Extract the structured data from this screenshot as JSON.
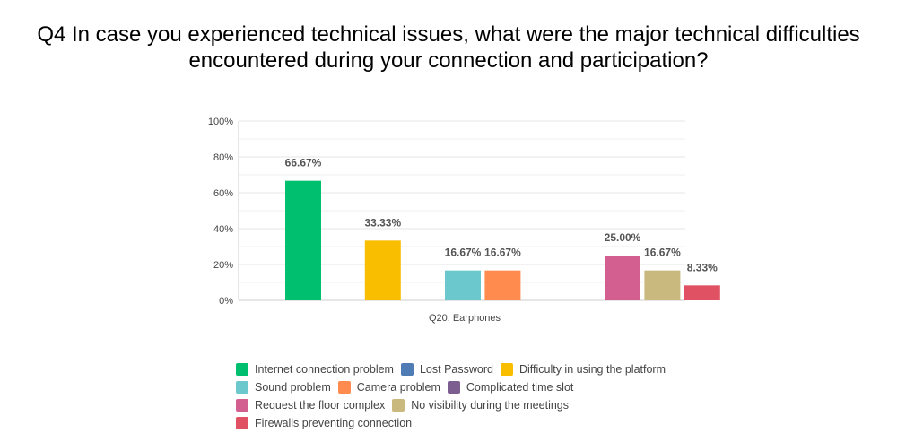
{
  "title_lines": [
    "Q4 In case you experienced technical issues, what were the major technical difficulties",
    "encountered during your connection and participation?"
  ],
  "chart_data": {
    "type": "bar",
    "categories": [
      "Q20: Earphones"
    ],
    "ylim": [
      0,
      100
    ],
    "y_ticks": [
      "0%",
      "20%",
      "40%",
      "60%",
      "80%",
      "100%"
    ],
    "y_tick_values": [
      0,
      20,
      40,
      60,
      80,
      100
    ],
    "grid": true,
    "legend_position": "bottom",
    "series": [
      {
        "name": "Internet connection problem",
        "color": "#00bf6f",
        "values": [
          66.67
        ],
        "label": "66.67%"
      },
      {
        "name": "Lost Password",
        "color": "#507cb6",
        "values": [
          0
        ],
        "label": ""
      },
      {
        "name": "Difficulty in using the platform",
        "color": "#f9be00",
        "values": [
          33.33
        ],
        "label": "33.33%"
      },
      {
        "name": "Sound problem",
        "color": "#6bc8cd",
        "values": [
          16.67
        ],
        "label": "16.67%"
      },
      {
        "name": "Camera problem",
        "color": "#ff8b4f",
        "values": [
          16.67
        ],
        "label": "16.67%"
      },
      {
        "name": "Complicated time slot",
        "color": "#7d5e90",
        "values": [
          0
        ],
        "label": ""
      },
      {
        "name": "Request the floor complex",
        "color": "#d25f90",
        "values": [
          25.0
        ],
        "label": "25.00%"
      },
      {
        "name": "No visibility during the meetings",
        "color": "#c9b97f",
        "values": [
          16.67
        ],
        "label": "16.67%"
      },
      {
        "name": "Firewalls preventing connection",
        "color": "#e05263",
        "values": [
          8.33
        ],
        "label": "8.33%"
      }
    ]
  }
}
